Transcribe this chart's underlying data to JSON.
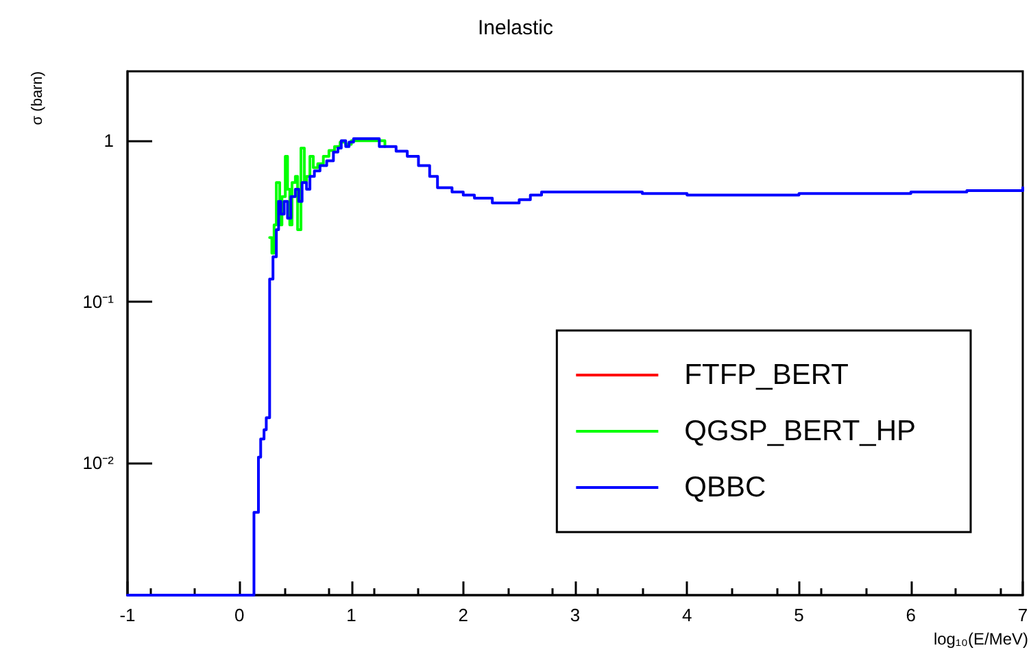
{
  "chart_data": {
    "type": "step",
    "title": "Inelastic",
    "xlabel": "log₁₀(E/MeV)",
    "ylabel": "σ (barn)",
    "log": "y",
    "grid": false,
    "legend": "bottom right",
    "line_style": "solid",
    "marker": "none",
    "xlim": [
      -1,
      7
    ],
    "xticks": [
      -1,
      0,
      1,
      2,
      3,
      4,
      5,
      6,
      7
    ],
    "ylim": [
      0.0015,
      2.7
    ],
    "yticks": [
      {
        "value": 0.01,
        "label": "10⁻²"
      },
      {
        "value": 0.1,
        "label": "10⁻¹"
      },
      1
    ],
    "series": [
      {
        "name": "FTFP_BERT",
        "color": "#ff0000"
      },
      {
        "name": "QGSP_BERT_HP",
        "color": "#00ff00",
        "x": [
          0.27,
          0.29,
          0.31,
          0.33,
          0.36,
          0.38,
          0.41,
          0.43,
          0.45,
          0.47,
          0.5,
          0.52,
          0.55,
          0.58,
          0.6,
          0.63,
          0.66,
          0.7,
          0.75,
          0.8,
          0.85,
          0.9,
          0.95,
          1.0,
          1.3
        ],
        "values": [
          0.25,
          0.2,
          0.3,
          0.55,
          0.3,
          0.45,
          0.8,
          0.5,
          0.3,
          0.55,
          0.6,
          0.28,
          0.9,
          0.55,
          0.6,
          0.8,
          0.68,
          0.72,
          0.8,
          0.87,
          0.92,
          0.98,
          0.95,
          1.0,
          0.92
        ]
      },
      {
        "name": "QBBC",
        "color": "#0000ff",
        "x": [
          -1,
          0.13,
          0.17,
          0.19,
          0.22,
          0.24,
          0.27,
          0.3,
          0.33,
          0.35,
          0.37,
          0.4,
          0.43,
          0.46,
          0.5,
          0.53,
          0.56,
          0.6,
          0.63,
          0.67,
          0.72,
          0.78,
          0.84,
          0.88,
          0.91,
          0.95,
          0.98,
          1.02,
          1.25,
          1.4,
          1.5,
          1.6,
          1.7,
          1.77,
          1.9,
          2.0,
          2.1,
          2.26,
          2.5,
          2.6,
          2.7,
          2.9,
          3.6,
          4.0,
          5.0,
          6.0,
          6.5,
          7.0
        ],
        "values": [
          0.0015,
          0.0049,
          0.0108,
          0.014,
          0.016,
          0.019,
          0.138,
          0.19,
          0.28,
          0.42,
          0.35,
          0.42,
          0.33,
          0.45,
          0.5,
          0.42,
          0.55,
          0.5,
          0.6,
          0.65,
          0.7,
          0.75,
          0.85,
          0.9,
          1.0,
          0.92,
          0.98,
          1.03,
          0.92,
          0.86,
          0.8,
          0.7,
          0.6,
          0.51,
          0.48,
          0.46,
          0.44,
          0.41,
          0.43,
          0.46,
          0.48,
          0.48,
          0.47,
          0.46,
          0.47,
          0.48,
          0.49,
          0.51
        ]
      }
    ]
  }
}
